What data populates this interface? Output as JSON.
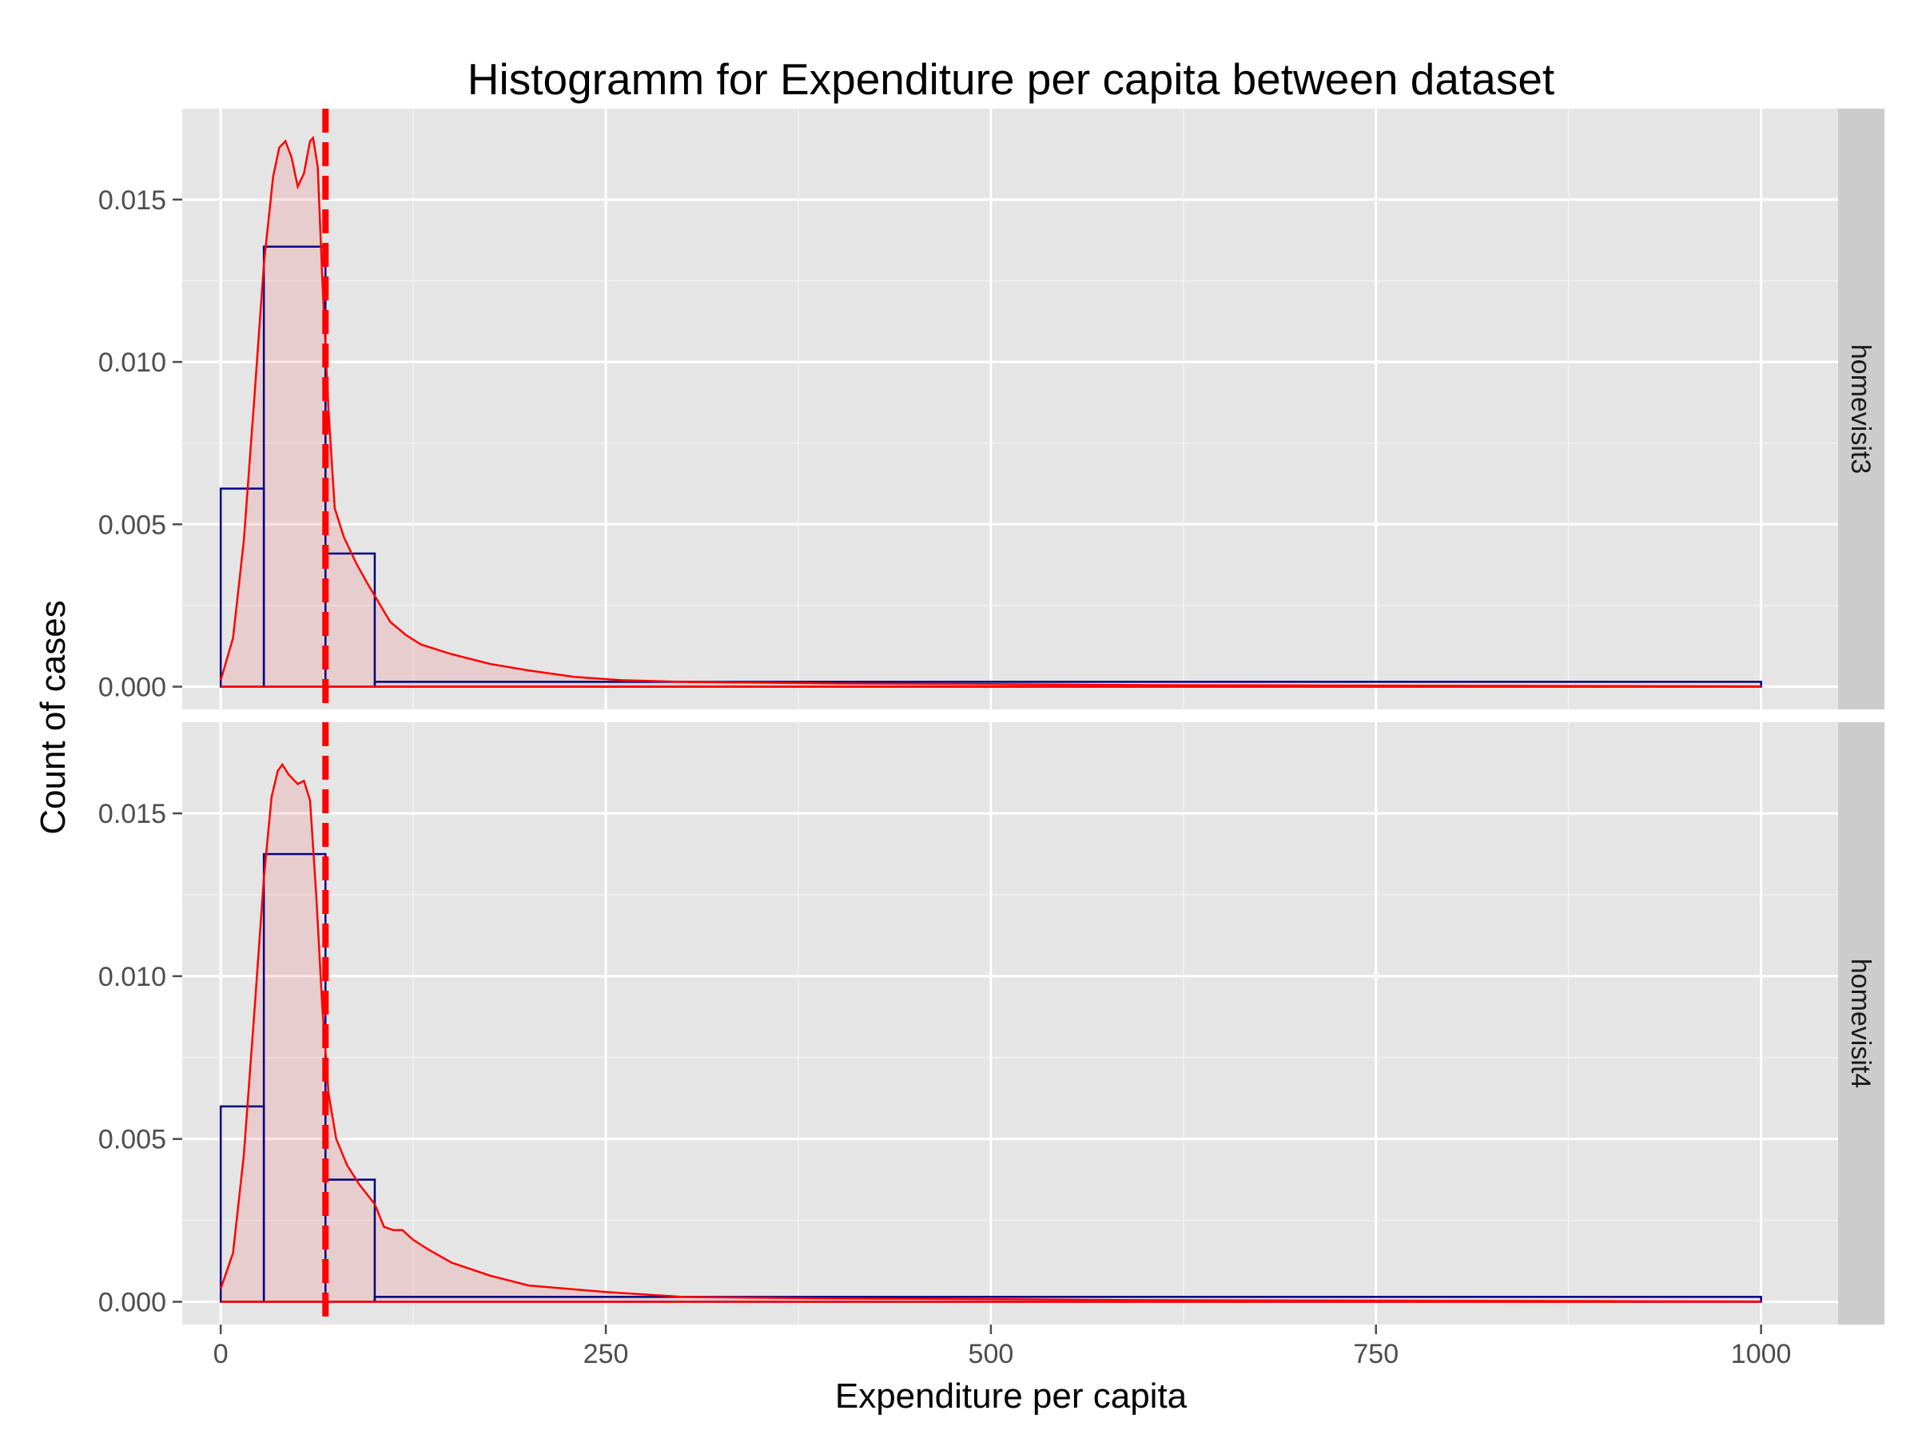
{
  "chart_data": {
    "type": "histogram",
    "title": "Histogramm for Expenditure per capita between dataset",
    "xlabel": "Expenditure per capita",
    "ylabel": "Count of cases",
    "xlim": [
      -25,
      1050
    ],
    "ylim": [
      -0.0007,
      0.0178
    ],
    "x_ticks": [
      0,
      250,
      500,
      750,
      1000
    ],
    "x_tick_labels": [
      "0",
      "250",
      "500",
      "750",
      "1000"
    ],
    "y_ticks": [
      0,
      0.005,
      0.01,
      0.015
    ],
    "y_tick_labels": [
      "0.000",
      "0.005",
      "0.010",
      "0.015"
    ],
    "grid": true,
    "facets": [
      {
        "name": "homevisit3",
        "bins": [
          {
            "x0": 0,
            "x1": 28,
            "density": 0.0061
          },
          {
            "x0": 28,
            "x1": 68,
            "density": 0.01355
          },
          {
            "x0": 68,
            "x1": 100,
            "density": 0.0041
          },
          {
            "x0": 100,
            "x1": 1000,
            "density": 0.00015
          }
        ],
        "density_curve": [
          [
            0,
            0.0002
          ],
          [
            8,
            0.0015
          ],
          [
            15,
            0.0045
          ],
          [
            22,
            0.009
          ],
          [
            28,
            0.013
          ],
          [
            34,
            0.0157
          ],
          [
            38,
            0.0166
          ],
          [
            42,
            0.0168
          ],
          [
            46,
            0.0163
          ],
          [
            50,
            0.0154
          ],
          [
            54,
            0.0158
          ],
          [
            58,
            0.0168
          ],
          [
            60,
            0.0169
          ],
          [
            63,
            0.016
          ],
          [
            66,
            0.0125
          ],
          [
            70,
            0.0085
          ],
          [
            74,
            0.0055
          ],
          [
            80,
            0.0046
          ],
          [
            88,
            0.0038
          ],
          [
            95,
            0.0032
          ],
          [
            100,
            0.0028
          ],
          [
            110,
            0.002
          ],
          [
            120,
            0.0016
          ],
          [
            130,
            0.0013
          ],
          [
            150,
            0.001
          ],
          [
            175,
            0.0007
          ],
          [
            200,
            0.0005
          ],
          [
            230,
            0.0003
          ],
          [
            260,
            0.0002
          ],
          [
            300,
            0.00015
          ],
          [
            400,
            0.0001
          ],
          [
            500,
            8e-05
          ],
          [
            600,
            5e-05
          ],
          [
            700,
            4e-05
          ],
          [
            800,
            3e-05
          ],
          [
            900,
            2e-05
          ],
          [
            1000,
            1e-05
          ]
        ],
        "mean_line": 68
      },
      {
        "name": "homevisit4",
        "bins": [
          {
            "x0": 0,
            "x1": 28,
            "density": 0.006
          },
          {
            "x0": 28,
            "x1": 68,
            "density": 0.01375
          },
          {
            "x0": 68,
            "x1": 100,
            "density": 0.00375
          },
          {
            "x0": 100,
            "x1": 1000,
            "density": 0.00015
          }
        ],
        "density_curve": [
          [
            0,
            0.0004
          ],
          [
            8,
            0.0015
          ],
          [
            15,
            0.0045
          ],
          [
            22,
            0.009
          ],
          [
            28,
            0.013
          ],
          [
            33,
            0.0155
          ],
          [
            37,
            0.0163
          ],
          [
            40,
            0.0165
          ],
          [
            44,
            0.0162
          ],
          [
            50,
            0.0159
          ],
          [
            54,
            0.016
          ],
          [
            58,
            0.0154
          ],
          [
            62,
            0.0125
          ],
          [
            66,
            0.009
          ],
          [
            70,
            0.0064
          ],
          [
            75,
            0.005
          ],
          [
            82,
            0.0042
          ],
          [
            90,
            0.0036
          ],
          [
            100,
            0.003
          ],
          [
            106,
            0.0023
          ],
          [
            112,
            0.0022
          ],
          [
            118,
            0.0022
          ],
          [
            125,
            0.0019
          ],
          [
            135,
            0.0016
          ],
          [
            150,
            0.0012
          ],
          [
            175,
            0.0008
          ],
          [
            200,
            0.0005
          ],
          [
            250,
            0.0003
          ],
          [
            300,
            0.00015
          ],
          [
            400,
            0.0001
          ],
          [
            500,
            8e-05
          ],
          [
            600,
            5e-05
          ],
          [
            700,
            4e-05
          ],
          [
            800,
            3e-05
          ],
          [
            900,
            2e-05
          ],
          [
            1000,
            1e-05
          ]
        ],
        "mean_line": 68
      }
    ],
    "colors": {
      "panel_bg": "#e5e5e5",
      "grid_major": "#ffffff",
      "grid_minor": "#f2f2f2",
      "strip_bg": "#cccccc",
      "bar_outline": "#000080",
      "density_line": "#ff0000",
      "density_fill": "#ff0000",
      "mean_line": "#ff0000"
    }
  }
}
